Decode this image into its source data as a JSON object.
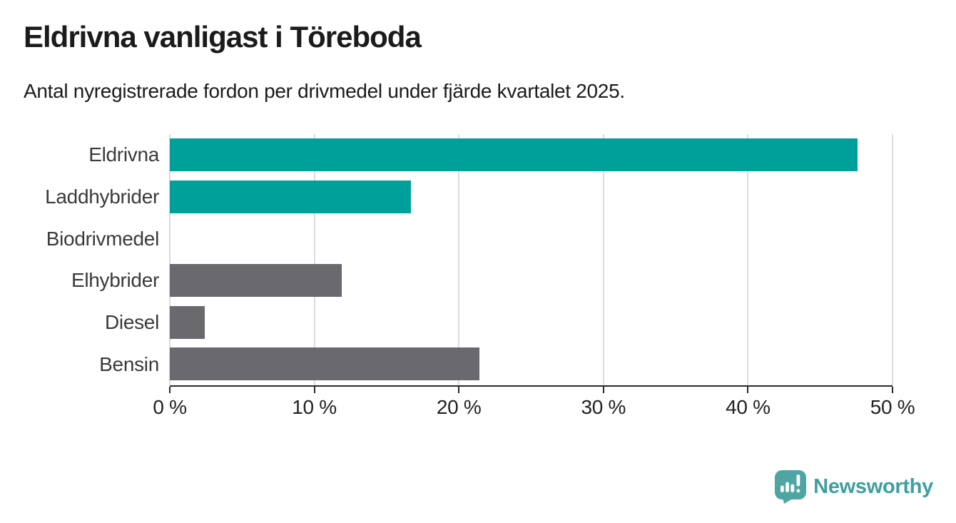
{
  "title": "Eldrivna vanligast i Töreboda",
  "subtitle": "Antal nyregistrerade fordon per drivmedel under fjärde kvartalet 2025.",
  "chart_data": {
    "type": "bar",
    "orientation": "horizontal",
    "title": "Eldrivna vanligast i Töreboda",
    "subtitle": "Antal nyregistrerade fordon per drivmedel under fjärde kvartalet 2025.",
    "categories": [
      "Eldrivna",
      "Laddhybrider",
      "Biodrivmedel",
      "Elhybrider",
      "Diesel",
      "Bensin"
    ],
    "values": [
      47.6,
      16.7,
      0,
      11.9,
      2.4,
      21.4
    ],
    "unit": "%",
    "xlim": [
      0,
      50
    ],
    "x_tick_values": [
      0,
      10,
      20,
      30,
      40,
      50
    ],
    "x_ticks": [
      "0 %",
      "10 %",
      "20 %",
      "30 %",
      "40 %",
      "50 %"
    ],
    "grid": true,
    "legend": false,
    "bar_colors": [
      "#00a09a",
      "#00a09a",
      "#69696e",
      "#69696e",
      "#69696e",
      "#69696e"
    ]
  },
  "branding": {
    "logo_text": "Newsworthy",
    "logo_text_color": "#3f9e9e",
    "logo_mark_color": "#4fa5a1"
  },
  "colors": {
    "bar_teal": "#00a09a",
    "bar_gray": "#69696e",
    "gridline": "#dcdcdc",
    "axis": "#2a2a2a",
    "text_dark": "#1b1b1b",
    "label_gray": "#3a3a3a"
  }
}
